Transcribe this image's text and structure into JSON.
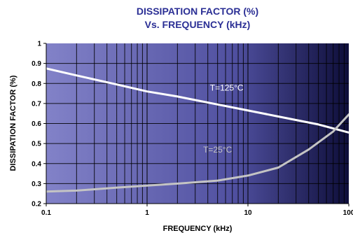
{
  "chart_data": {
    "type": "line",
    "title": "DISSIPATION FACTOR (%)",
    "subtitle": "Vs. FREQUENCY (kHz)",
    "xlabel": "FREQUENCY (kHz)",
    "ylabel": "DISSIPATION FACTOR (%)",
    "x_scale": "log",
    "xlim": [
      0.1,
      100
    ],
    "ylim": [
      0.2,
      1.0
    ],
    "x_ticks": [
      "0.1",
      "1",
      "10",
      "100"
    ],
    "y_ticks": [
      "0.2",
      "0.3",
      "0.4",
      "0.5",
      "0.6",
      "0.7",
      "0.8",
      "0.9",
      "1"
    ],
    "grid": true,
    "background": {
      "from": "#8282c8",
      "to": "#0e0e3a"
    },
    "series": [
      {
        "name": "T=125°C",
        "color": "#ffffff",
        "label_color": "#ffffff",
        "x": [
          0.1,
          0.2,
          0.5,
          1,
          2,
          5,
          10,
          20,
          50,
          100
        ],
        "y": [
          0.875,
          0.84,
          0.795,
          0.76,
          0.735,
          0.695,
          0.665,
          0.635,
          0.595,
          0.555
        ]
      },
      {
        "name": "T=25°C",
        "color": "#c4c4c4",
        "label_color": "#c4c4c4",
        "x": [
          0.1,
          0.2,
          0.5,
          1,
          2,
          5,
          10,
          20,
          40,
          70,
          100
        ],
        "y": [
          0.26,
          0.265,
          0.28,
          0.29,
          0.3,
          0.315,
          0.34,
          0.38,
          0.47,
          0.56,
          0.645
        ]
      }
    ]
  }
}
